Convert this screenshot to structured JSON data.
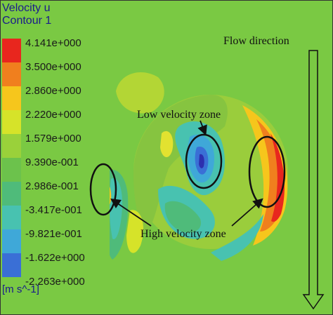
{
  "legend": {
    "title": "Velocity u",
    "subtitle": "Contour 1",
    "unit": "[m s^-1]",
    "levels": [
      {
        "label": "4.141e+000",
        "color": "#e8261e"
      },
      {
        "label": "3.500e+000",
        "color": "#f07f1e"
      },
      {
        "label": "2.860e+000",
        "color": "#f6c61c"
      },
      {
        "label": "2.220e+000",
        "color": "#d6e329"
      },
      {
        "label": "1.579e+000",
        "color": "#9ad13a"
      },
      {
        "label": "9.390e-001",
        "color": "#6cc24c"
      },
      {
        "label": "2.986e-001",
        "color": "#4fbb7a"
      },
      {
        "label": "-3.417e-001",
        "color": "#48c2b0"
      },
      {
        "label": "-9.821e-001",
        "color": "#3fa8d8"
      },
      {
        "label": "-1.622e+000",
        "color": "#3a6fd6"
      },
      {
        "label": "-2.263e+000",
        "color": "#2c2fae"
      }
    ]
  },
  "annotations": {
    "flow_direction": "Flow direction",
    "low_velocity": "Low velocity zone",
    "high_velocity": "High velocity zone"
  }
}
